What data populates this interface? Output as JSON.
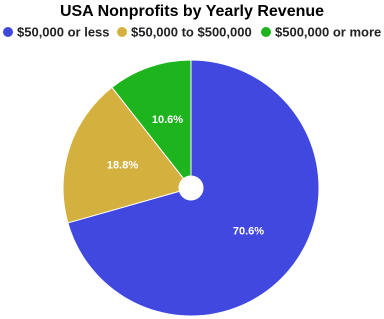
{
  "chart_data": {
    "type": "pie",
    "title": "USA Nonprofits by Yearly Revenue",
    "categories": [
      "$50,000 or less",
      "$50,000 to $500,000",
      "$500,000 or more"
    ],
    "values": [
      70.6,
      18.8,
      10.6
    ],
    "value_labels": [
      "70.6%",
      "18.8%",
      "10.6%"
    ],
    "colors": [
      "#4048e0",
      "#d4b03e",
      "#1eb41e"
    ]
  }
}
